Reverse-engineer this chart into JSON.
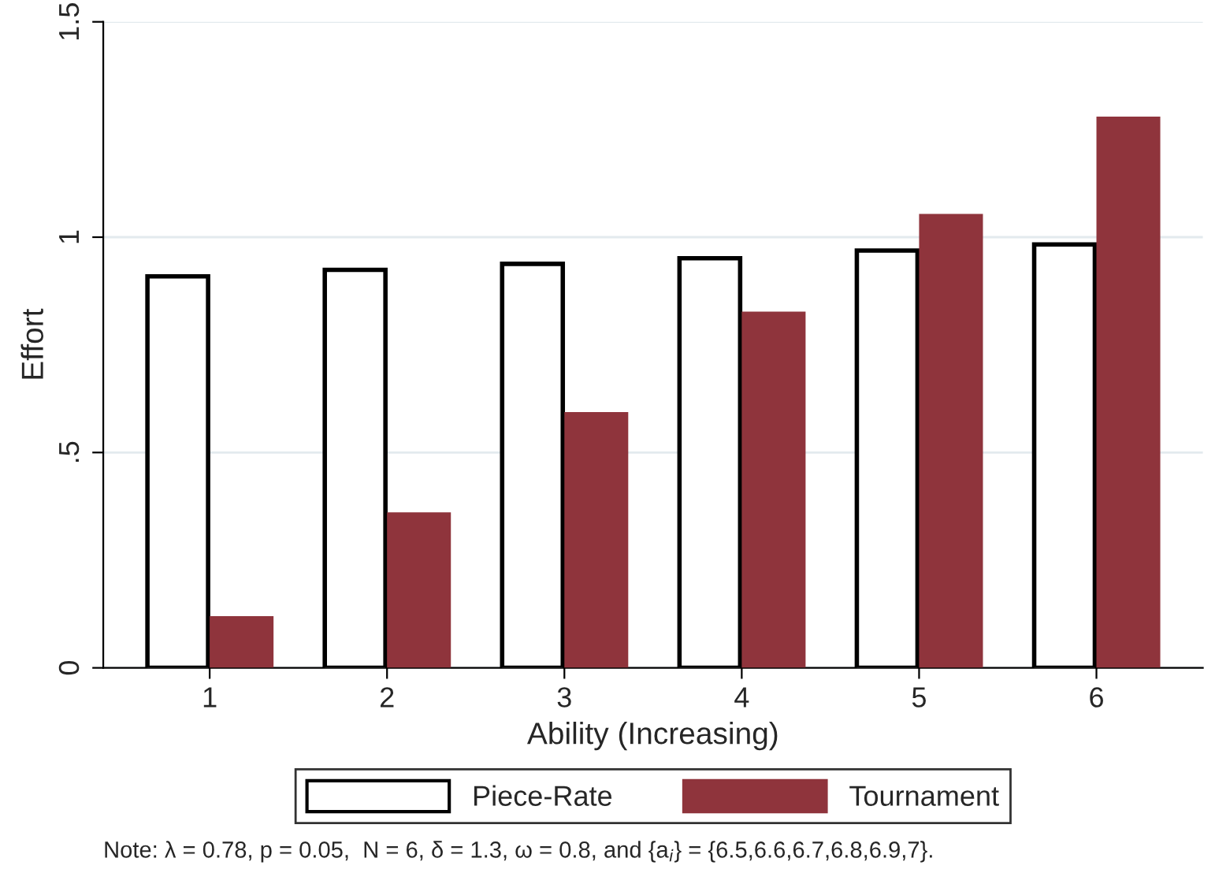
{
  "chart_data": {
    "type": "bar",
    "xlabel": "Ability (Increasing)",
    "ylabel": "Effort",
    "categories": [
      "1",
      "2",
      "3",
      "4",
      "5",
      "6"
    ],
    "series": [
      {
        "name": "Piece-Rate",
        "color": "#ffffff",
        "values": [
          0.909,
          0.924,
          0.938,
          0.951,
          0.969,
          0.983
        ]
      },
      {
        "name": "Tournament",
        "color": "#8f343c",
        "values": [
          0.12,
          0.361,
          0.594,
          0.827,
          1.054,
          1.28
        ]
      }
    ],
    "ylim": [
      0,
      1.5
    ],
    "yticks": [
      0,
      {
        "value": 0.5,
        "label": ".5"
      },
      1,
      1.5
    ],
    "grid": "y",
    "legend": "bottom",
    "annotations": [
      "Note: λ = 0.78, p = 0.05,  N = 6, δ = 1.3, ω = 0.8, and {a$_{i}$} = {6.5,6.6,6.7,6.8,6.9,7}."
    ]
  }
}
